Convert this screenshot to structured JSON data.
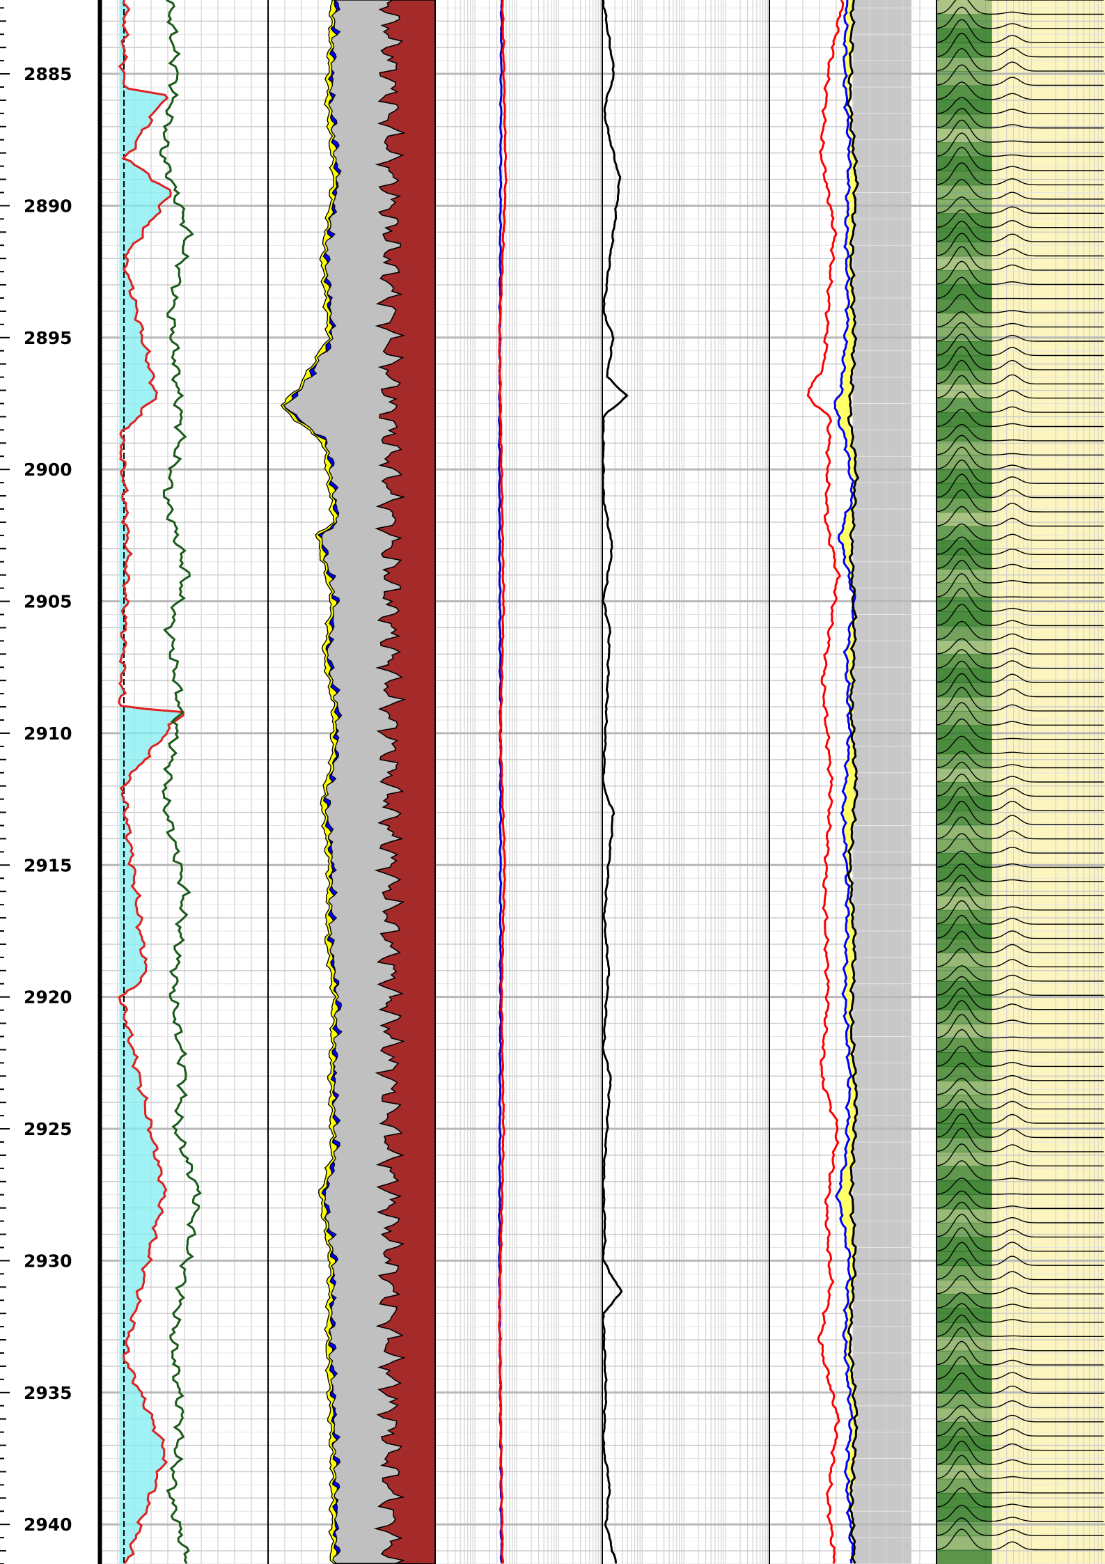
{
  "chart_data": {
    "type": "line",
    "title": "",
    "depth_axis": {
      "unit": "",
      "range": [
        2882.2,
        2941.5
      ],
      "tick_labels": [
        "2885",
        "2890",
        "2895",
        "2900",
        "2905",
        "2910",
        "2915",
        "2920",
        "2925",
        "2930",
        "2935",
        "2940"
      ],
      "major_step": 5,
      "minor_step": 0.5,
      "direction": "depth increases downward"
    },
    "grid": true,
    "legend": "none",
    "tracks": [
      {
        "name": "track-1",
        "scale": "linear",
        "curves": [
          {
            "color": "#e02020",
            "depth": [
              2882.2,
              2885.5,
              2885.8,
              2888.2,
              2889.5,
              2892,
              2897.2,
              2898.7,
              2903,
              2909,
              2909.2,
              2912,
              2919.2,
              2920,
              2927.4,
              2933.6,
              2937.3,
              2941.5
            ],
            "value": [
              1.5,
              1.3,
              3.9,
              1.5,
              4.2,
              1.4,
              3.3,
              1.2,
              1.6,
              1.2,
              4.9,
              1.3,
              2.7,
              1.2,
              3.8,
              1.4,
              3.9,
              1.5
            ]
          },
          {
            "color": "#1a5a1a",
            "depth": [
              2882.2,
              2885,
              2888,
              2891,
              2894,
              2898.7,
              2901,
              2904,
              2906,
              2909,
              2912.5,
              2916,
              2920,
              2923,
              2925,
              2927.4,
              2930,
              2933,
              2936,
              2939,
              2941.5
            ],
            "value": [
              4.1,
              4.5,
              3.7,
              5.2,
              4.2,
              4.8,
              3.9,
              5.1,
              4.1,
              4.7,
              3.8,
              5.0,
              4.3,
              5.0,
              4.5,
              5.8,
              5.1,
              4.3,
              4.8,
              4.2,
              5.2
            ]
          }
        ],
        "fill_color": "#80eef0"
      },
      {
        "name": "track-2",
        "scale": "linear",
        "fill_order": [
          "#c0c0c0",
          "#000080",
          "#ffff00",
          "#0000ff",
          "#a52a2a"
        ],
        "boundary_depth": [
          2882.2,
          2886,
          2889,
          2892,
          2895,
          2897,
          2897.6,
          2899,
          2902,
          2902.5,
          2905,
          2907,
          2909,
          2911,
          2912.5,
          2915,
          2918,
          2920,
          2923,
          2926,
          2927.5,
          2930,
          2933,
          2936,
          2938,
          2941.5
        ],
        "boundary_value": [
          3.8,
          3.5,
          3.9,
          3.2,
          3.6,
          1.7,
          0.7,
          3.3,
          3.9,
          2.9,
          3.8,
          3.3,
          3.9,
          3.8,
          3.2,
          3.6,
          3.5,
          3.9,
          3.7,
          3.8,
          3.1,
          3.7,
          3.5,
          3.7,
          3.8,
          3.8
        ]
      },
      {
        "name": "track-3",
        "scale": "log",
        "curves": [
          {
            "color": "#0000cc",
            "depth": [
              2882.2,
              2890,
              2900,
              2910,
              2920,
              2930,
              2941.5
            ],
            "value": [
              4.7,
              4.6,
              4.5,
              4.6,
              4.6,
              4.5,
              4.7
            ]
          },
          {
            "color": "#ff0000",
            "depth": [
              2882.2,
              2889,
              2895,
              2900,
              2905,
              2910,
              2915,
              2920,
              2925,
              2932,
              2941.5
            ],
            "value": [
              4.8,
              5.1,
              4.5,
              4.7,
              4.9,
              4.6,
              5.0,
              4.7,
              4.9,
              4.5,
              4.8
            ]
          }
        ]
      },
      {
        "name": "track-4",
        "scale": "log",
        "curves": [
          {
            "color": "#000000",
            "depth": [
              2882.2,
              2885,
              2886.3,
              2887,
              2889,
              2890.5,
              2894,
              2895,
              2896.5,
              2897.2,
              2898,
              2901,
              2903,
              2905,
              2906,
              2908,
              2912,
              2913,
              2917,
              2919,
              2922,
              2923,
              2927,
              2929,
              2930,
              2931.2,
              2932,
              2935,
              2937,
              2938.5,
              2940,
              2941.5
            ],
            "value": [
              0.1,
              1.3,
              0.2,
              0.5,
              1.9,
              1.4,
              0.1,
              1.2,
              0.5,
              2.7,
              0.1,
              0.1,
              1.1,
              0.1,
              0.8,
              0.6,
              0.1,
              1.2,
              0.2,
              0.7,
              0.1,
              0.9,
              0.1,
              0.3,
              0.1,
              2.1,
              0.1,
              0.4,
              0.1,
              0.8,
              0.4,
              1.5
            ]
          }
        ]
      },
      {
        "name": "track-5",
        "scale": "linear",
        "curves": [
          {
            "color": "#ff0000",
            "depth": [
              2882.2,
              2885,
              2888,
              2891,
              2893,
              2896,
              2897.2,
              2898,
              2902,
              2904,
              2908,
              2912,
              2916,
              2920,
              2923,
              2925,
              2928,
              2931,
              2933,
              2936,
              2939,
              2941.5
            ],
            "value": [
              4.4,
              3.5,
              3.1,
              3.9,
              3.6,
              3.3,
              2.2,
              3.6,
              3.4,
              4.1,
              3.2,
              3.7,
              3.3,
              3.5,
              3.1,
              4.1,
              3.4,
              3.7,
              3.0,
              4.1,
              3.5,
              3.9
            ]
          },
          {
            "color": "#0000ff",
            "depth": [
              2882.2,
              2885,
              2888,
              2891,
              2894,
              2897,
              2897.6,
              2899,
              2901,
              2902.5,
              2905,
              2907,
              2910,
              2913,
              2916,
              2920,
              2923,
              2926,
              2927.5,
              2930,
              2933,
              2936,
              2938,
              2941.5
            ],
            "value": [
              4.6,
              4.5,
              4.8,
              4.6,
              4.7,
              4.3,
              3.9,
              4.6,
              5.0,
              4.2,
              5.1,
              4.6,
              4.8,
              4.4,
              4.7,
              4.5,
              4.8,
              4.6,
              4.1,
              4.8,
              4.5,
              4.9,
              4.6,
              5.0
            ]
          },
          {
            "color": "#000000",
            "depth": [
              2882.2,
              2886,
              2889,
              2892,
              2895,
              2898,
              2900,
              2903,
              2906,
              2909,
              2912,
              2915,
              2918,
              2921,
              2924,
              2927,
              2930,
              2933,
              2936,
              2939,
              2941.5
            ],
            "value": [
              5.0,
              4.8,
              5.2,
              4.9,
              5.1,
              4.8,
              5.2,
              4.9,
              5.1,
              4.9,
              5.2,
              4.8,
              5.1,
              4.9,
              5.2,
              4.9,
              5.1,
              4.8,
              5.2,
              4.9,
              5.1
            ]
          }
        ],
        "shade": {
          "from": 5.0,
          "to": 8.5,
          "color": "#c8c8c8"
        }
      },
      {
        "name": "track-6",
        "type": "waveform",
        "trace_count": 110,
        "peak_color": "#1a6e1a",
        "background": "#fdf5c0"
      }
    ]
  }
}
